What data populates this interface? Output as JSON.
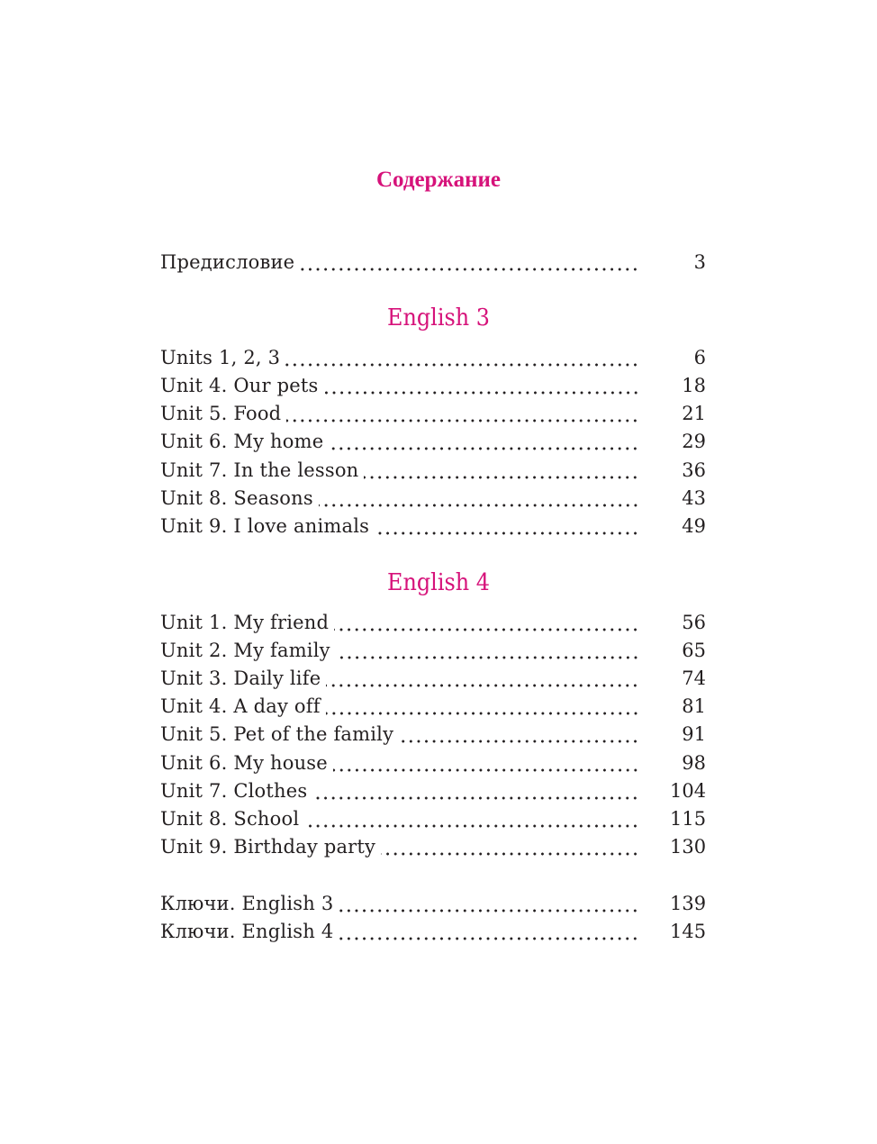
{
  "title": "Содержание",
  "preface": {
    "label": "Предисловие",
    "page": "3"
  },
  "sections": [
    {
      "heading": "English 3",
      "items": [
        {
          "label": "Units 1, 2, 3",
          "page": "6"
        },
        {
          "label": "Unit 4. Our pets",
          "page": "18"
        },
        {
          "label": "Unit 5. Food",
          "page": "21"
        },
        {
          "label": "Unit 6. My home",
          "page": "29"
        },
        {
          "label": "Unit 7. In the lesson",
          "page": "36"
        },
        {
          "label": "Unit 8. Seasons",
          "page": "43"
        },
        {
          "label": "Unit 9. I love animals",
          "page": "49"
        }
      ]
    },
    {
      "heading": "English 4",
      "items": [
        {
          "label": "Unit 1. My friend",
          "page": "56"
        },
        {
          "label": "Unit 2. My family",
          "page": "65"
        },
        {
          "label": "Unit 3. Daily life",
          "page": "74"
        },
        {
          "label": "Unit 4. A day off",
          "page": "81"
        },
        {
          "label": "Unit 5. Pet of the family",
          "page": "91"
        },
        {
          "label": "Unit 6. My house",
          "page": "98"
        },
        {
          "label": "Unit 7. Clothes",
          "page": "104"
        },
        {
          "label": "Unit 8. School",
          "page": "115"
        },
        {
          "label": "Unit 9. Birthday party",
          "page": "130"
        }
      ]
    }
  ],
  "keys": [
    {
      "label": "Ключи. English 3",
      "page": "139"
    },
    {
      "label": "Ключи. English 4",
      "page": "145"
    }
  ],
  "colors": {
    "accent": "#d6127a",
    "text": "#231f20"
  }
}
